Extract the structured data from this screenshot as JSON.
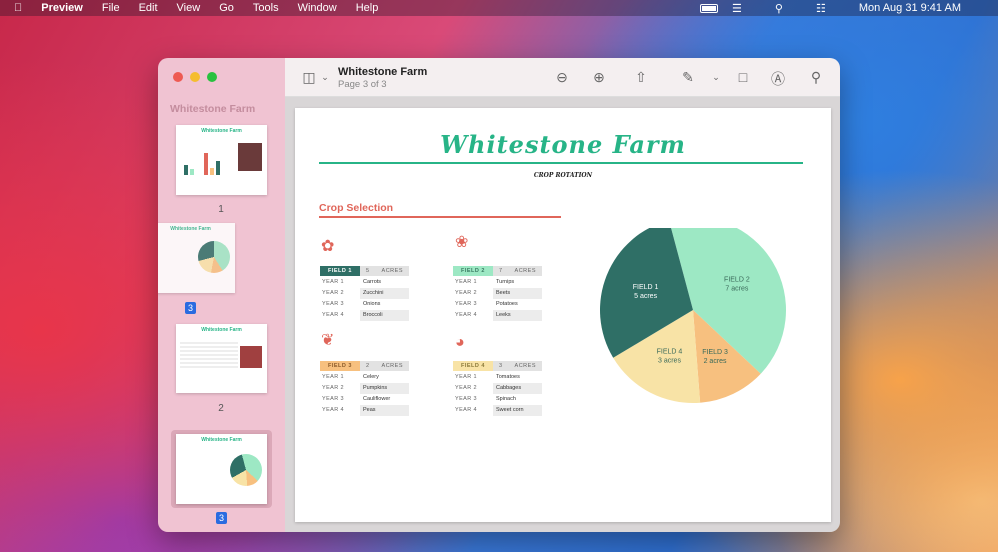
{
  "menubar": {
    "apple": "",
    "app": "Preview",
    "items": [
      "File",
      "Edit",
      "View",
      "Go",
      "Tools",
      "Window",
      "Help"
    ],
    "clock": "Mon Aug 31  9:41 AM"
  },
  "sidebar": {
    "title": "Whitestone Farm",
    "thumbs": [
      {
        "label": "1"
      },
      {
        "label": "3",
        "dragging": true
      },
      {
        "label": "2"
      },
      {
        "label": "3",
        "selected": true
      }
    ],
    "thumb_title": "Whitestone Farm"
  },
  "toolbar": {
    "title": "Whitestone Farm",
    "subtitle": "Page 3 of 3",
    "icons": [
      "sidebar-toggle-icon",
      "zoom-out-icon",
      "zoom-in-icon",
      "share-icon",
      "markup-pen-icon",
      "rotate-icon",
      "annotate-icon",
      "search-icon"
    ]
  },
  "page": {
    "title": "Whitestone Farm",
    "subtitle": "CROP ROTATION",
    "section": "Crop Selection",
    "acres_label": "ACRES",
    "fields": [
      {
        "name": "FIELD 1",
        "acres": "5",
        "color": "#2f6f66",
        "text": "#ffffff",
        "years": [
          "YEAR 1",
          "YEAR 2",
          "YEAR 3",
          "YEAR 4"
        ],
        "crops": [
          "Carrots",
          "Zucchini",
          "Onions",
          "Broccoli"
        ]
      },
      {
        "name": "FIELD 2",
        "acres": "7",
        "color": "#9de8c4",
        "text": "#3a7a62",
        "years": [
          "YEAR 1",
          "YEAR 2",
          "YEAR 3",
          "YEAR 4"
        ],
        "crops": [
          "Turnips",
          "Beets",
          "Potatoes",
          "Leeks"
        ]
      },
      {
        "name": "FIELD 3",
        "acres": "2",
        "color": "#f7c07f",
        "text": "#8a5a2a",
        "years": [
          "YEAR 1",
          "YEAR 2",
          "YEAR 3",
          "YEAR 4"
        ],
        "crops": [
          "Celery",
          "Pumpkins",
          "Cauliflower",
          "Peas"
        ]
      },
      {
        "name": "FIELD 4",
        "acres": "3",
        "color": "#f8e3a6",
        "text": "#8a7a3a",
        "years": [
          "YEAR 1",
          "YEAR 2",
          "YEAR 3",
          "YEAR 4"
        ],
        "crops": [
          "Tomatoes",
          "Cabbages",
          "Spinach",
          "Sweet corn"
        ]
      }
    ]
  },
  "chart_data": {
    "type": "pie",
    "slices": [
      {
        "label": "FIELD 2",
        "sublabel": "7 acres",
        "value": 7,
        "color": "#9de8c4"
      },
      {
        "label": "FIELD 3",
        "sublabel": "2 acres",
        "value": 2,
        "color": "#f7c07f"
      },
      {
        "label": "FIELD 4",
        "sublabel": "3 acres",
        "value": 3,
        "color": "#f8e3a6"
      },
      {
        "label": "FIELD 1",
        "sublabel": "5 acres",
        "value": 5,
        "color": "#2f6f66"
      }
    ]
  }
}
